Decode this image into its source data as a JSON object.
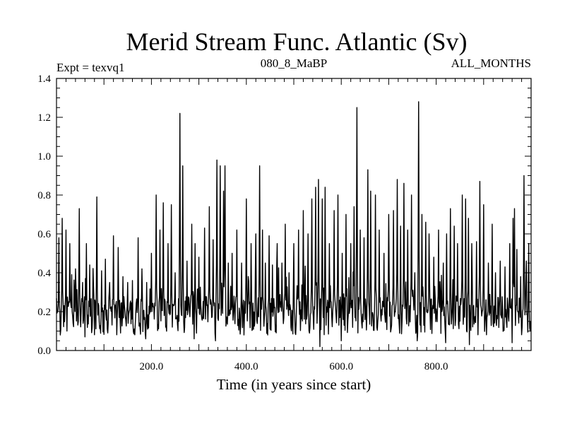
{
  "chart_data": {
    "type": "line",
    "title": "Merid Stream Func. Atlantic (Sv)",
    "annotations": {
      "left": "Expt = texvq1",
      "center": "080_8_MaBP",
      "right": "ALL_MONTHS"
    },
    "xlabel": "Time (in years since start)",
    "ylabel": "",
    "xlim": [
      0,
      1000
    ],
    "ylim": [
      0.0,
      1.4
    ],
    "x_ticks": [
      {
        "value": 200,
        "label": "200.0"
      },
      {
        "value": 400,
        "label": "400.0"
      },
      {
        "value": 600,
        "label": "600.0"
      },
      {
        "value": 800,
        "label": "800.0"
      }
    ],
    "y_ticks": [
      {
        "value": 0.0,
        "label": "0.0"
      },
      {
        "value": 0.2,
        "label": "0.2"
      },
      {
        "value": 0.4,
        "label": "0.4"
      },
      {
        "value": 0.6,
        "label": "0.6"
      },
      {
        "value": 0.8,
        "label": "0.8"
      },
      {
        "value": 1.0,
        "label": "1.0"
      },
      {
        "value": 1.2,
        "label": "1.2"
      },
      {
        "value": 1.4,
        "label": "1.4"
      }
    ],
    "grid": false,
    "legend": "none",
    "series": [
      {
        "color": "#000000",
        "baseline": 0.18,
        "spikes": [
          [
            5,
            0.58
          ],
          [
            12,
            0.68
          ],
          [
            20,
            0.62
          ],
          [
            28,
            0.55
          ],
          [
            32,
            0.39
          ],
          [
            40,
            0.42
          ],
          [
            48,
            0.73
          ],
          [
            55,
            0.35
          ],
          [
            63,
            0.55
          ],
          [
            70,
            0.44
          ],
          [
            78,
            0.33
          ],
          [
            85,
            0.79
          ],
          [
            95,
            0.41
          ],
          [
            103,
            0.47
          ],
          [
            112,
            0.35
          ],
          [
            120,
            0.59
          ],
          [
            130,
            0.53
          ],
          [
            140,
            0.38
          ],
          [
            150,
            0.35
          ],
          [
            160,
            0.36
          ],
          [
            172,
            0.58
          ],
          [
            180,
            0.42
          ],
          [
            190,
            0.35
          ],
          [
            200,
            0.5
          ],
          [
            210,
            0.8
          ],
          [
            218,
            0.62
          ],
          [
            225,
            0.76
          ],
          [
            235,
            0.55
          ],
          [
            242,
            0.75
          ],
          [
            250,
            0.4
          ],
          [
            260,
            1.22
          ],
          [
            266,
            0.95
          ],
          [
            275,
            0.46
          ],
          [
            285,
            0.65
          ],
          [
            292,
            0.55
          ],
          [
            300,
            0.48
          ],
          [
            312,
            0.63
          ],
          [
            322,
            0.74
          ],
          [
            330,
            0.57
          ],
          [
            338,
            0.98
          ],
          [
            345,
            0.95
          ],
          [
            352,
            0.82
          ],
          [
            355,
            0.95
          ],
          [
            362,
            0.45
          ],
          [
            370,
            0.5
          ],
          [
            380,
            0.62
          ],
          [
            390,
            0.45
          ],
          [
            400,
            0.78
          ],
          [
            410,
            0.55
          ],
          [
            420,
            0.6
          ],
          [
            428,
            0.95
          ],
          [
            434,
            0.62
          ],
          [
            440,
            0.45
          ],
          [
            448,
            0.59
          ],
          [
            455,
            0.44
          ],
          [
            465,
            0.55
          ],
          [
            475,
            0.45
          ],
          [
            482,
            0.65
          ],
          [
            490,
            0.4
          ],
          [
            500,
            0.55
          ],
          [
            510,
            0.62
          ],
          [
            520,
            0.72
          ],
          [
            530,
            0.6
          ],
          [
            538,
            0.78
          ],
          [
            546,
            0.84
          ],
          [
            552,
            0.88
          ],
          [
            560,
            0.78
          ],
          [
            566,
            0.84
          ],
          [
            575,
            0.55
          ],
          [
            585,
            0.72
          ],
          [
            593,
            0.8
          ],
          [
            602,
            0.5
          ],
          [
            610,
            0.7
          ],
          [
            620,
            0.55
          ],
          [
            627,
            0.74
          ],
          [
            633,
            1.25
          ],
          [
            640,
            0.62
          ],
          [
            648,
            0.58
          ],
          [
            656,
            0.93
          ],
          [
            662,
            0.82
          ],
          [
            672,
            0.8
          ],
          [
            680,
            0.62
          ],
          [
            690,
            0.5
          ],
          [
            700,
            0.7
          ],
          [
            710,
            0.72
          ],
          [
            718,
            0.88
          ],
          [
            725,
            0.64
          ],
          [
            732,
            0.86
          ],
          [
            740,
            0.62
          ],
          [
            748,
            0.8
          ],
          [
            755,
            0.4
          ],
          [
            763,
            1.28
          ],
          [
            770,
            0.7
          ],
          [
            778,
            0.66
          ],
          [
            785,
            0.6
          ],
          [
            795,
            0.48
          ],
          [
            805,
            0.62
          ],
          [
            815,
            0.45
          ],
          [
            822,
            0.6
          ],
          [
            830,
            0.73
          ],
          [
            838,
            0.64
          ],
          [
            845,
            0.55
          ],
          [
            855,
            0.8
          ],
          [
            862,
            0.78
          ],
          [
            868,
            0.68
          ],
          [
            875,
            0.55
          ],
          [
            885,
            0.56
          ],
          [
            892,
            0.87
          ],
          [
            900,
            0.75
          ],
          [
            910,
            0.45
          ],
          [
            918,
            0.65
          ],
          [
            925,
            0.4
          ],
          [
            935,
            0.46
          ],
          [
            945,
            0.43
          ],
          [
            955,
            0.55
          ],
          [
            962,
            0.68
          ],
          [
            965,
            0.73
          ],
          [
            970,
            0.52
          ],
          [
            978,
            0.38
          ],
          [
            985,
            0.9
          ],
          [
            990,
            0.46
          ],
          [
            995,
            0.55
          ]
        ],
        "troughs": [
          [
            8,
            0.08
          ],
          [
            22,
            0.1
          ],
          [
            60,
            0.07
          ],
          [
            95,
            0.07
          ],
          [
            135,
            0.09
          ],
          [
            150,
            0.05
          ],
          [
            188,
            0.06
          ],
          [
            235,
            0.07
          ],
          [
            290,
            0.06
          ],
          [
            335,
            0.05
          ],
          [
            380,
            0.07
          ],
          [
            395,
            0.08
          ],
          [
            445,
            0.08
          ],
          [
            530,
            0.05
          ],
          [
            555,
            0.02
          ],
          [
            600,
            0.05
          ],
          [
            640,
            0.06
          ],
          [
            700,
            0.07
          ],
          [
            760,
            0.05
          ],
          [
            820,
            0.04
          ],
          [
            870,
            0.03
          ],
          [
            900,
            0.06
          ],
          [
            925,
            0.09
          ],
          [
            960,
            0.04
          ],
          [
            998,
            0.1
          ]
        ]
      }
    ]
  }
}
